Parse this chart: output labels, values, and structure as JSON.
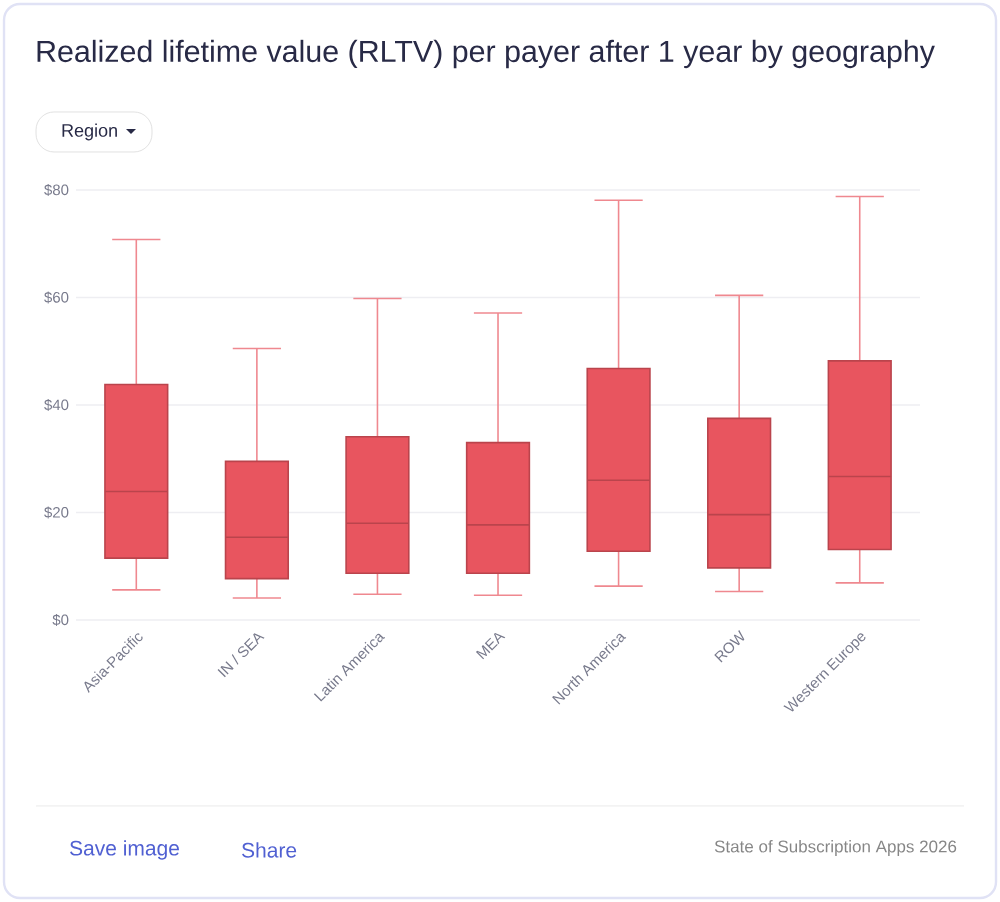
{
  "chart_data": {
    "type": "box",
    "title": "Realized lifetime value (RLTV) per payer after 1 year by geography",
    "categories": [
      "Asia-Pacific",
      "IN / SEA",
      "Latin America",
      "MEA",
      "North America",
      "ROW",
      "Western Europe"
    ],
    "boxes": [
      {
        "low": 5.6,
        "q1": 11.5,
        "median": 23.9,
        "q3": 43.8,
        "high": 70.8
      },
      {
        "low": 4.1,
        "q1": 7.7,
        "median": 15.4,
        "q3": 29.5,
        "high": 50.5
      },
      {
        "low": 4.8,
        "q1": 8.7,
        "median": 18.0,
        "q3": 34.1,
        "high": 59.8
      },
      {
        "low": 4.6,
        "q1": 8.7,
        "median": 17.7,
        "q3": 33.0,
        "high": 57.1
      },
      {
        "low": 6.3,
        "q1": 12.8,
        "median": 26.0,
        "q3": 46.8,
        "high": 78.1
      },
      {
        "low": 5.3,
        "q1": 9.7,
        "median": 19.6,
        "q3": 37.5,
        "high": 60.4
      },
      {
        "low": 6.9,
        "q1": 13.1,
        "median": 26.7,
        "q3": 48.2,
        "high": 78.8
      }
    ],
    "color": "#e8555f",
    "ylim": [
      0,
      80
    ],
    "yticks": [
      {
        "value": 0,
        "label": "$0"
      },
      {
        "value": 20,
        "label": "$20"
      },
      {
        "value": 40,
        "label": "$40"
      },
      {
        "value": 60,
        "label": "$60"
      },
      {
        "value": 80,
        "label": "$80"
      }
    ],
    "grid": "y",
    "annotations": [
      "Region",
      "Save image",
      "Share",
      "State of Subscription Apps 2026"
    ]
  }
}
